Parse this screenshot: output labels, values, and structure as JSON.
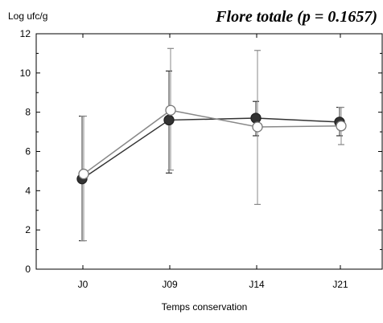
{
  "chart_data": {
    "type": "line",
    "title": "Flore totale (p = 0.1657)",
    "ylabel": "Log ufc/g",
    "xlabel": "Temps conservation",
    "categories": [
      "J0",
      "J09",
      "J14",
      "J21"
    ],
    "ylim": [
      0,
      12
    ],
    "yticks": [
      0,
      2,
      4,
      6,
      8,
      10,
      12
    ],
    "grid": false,
    "series": [
      {
        "marker": "filled-circle",
        "color": "#333333",
        "values": [
          4.6,
          7.6,
          7.7,
          7.5
        ],
        "err_low": [
          1.45,
          4.9,
          6.8,
          6.8
        ],
        "err_high": [
          7.8,
          10.1,
          8.55,
          8.25
        ]
      },
      {
        "marker": "open-circle",
        "color": "#888888",
        "values": [
          4.85,
          8.1,
          7.25,
          7.3
        ],
        "err_low": [
          1.45,
          5.05,
          3.3,
          6.35
        ],
        "err_high": [
          7.8,
          11.25,
          11.15,
          8.25
        ]
      }
    ]
  }
}
